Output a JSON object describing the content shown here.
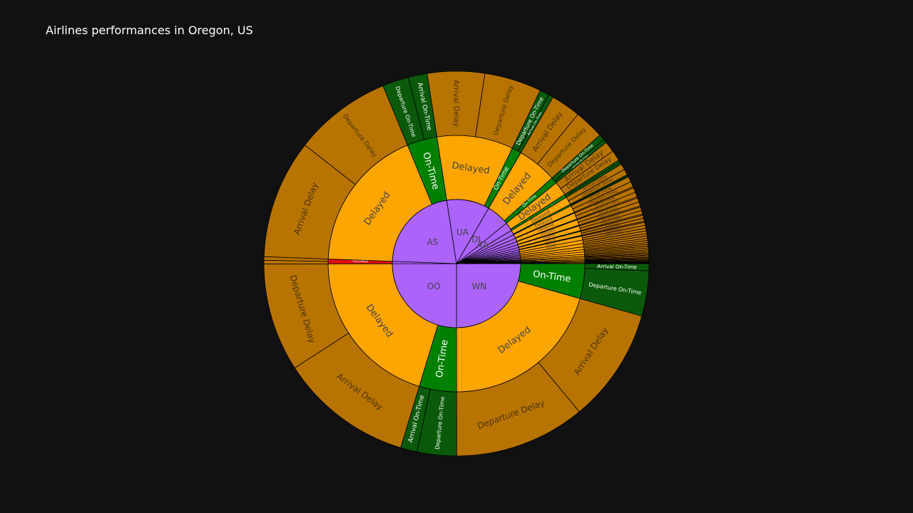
{
  "title": "Airlines performances in Oregon, US",
  "colors": {
    "background": "#111111",
    "airline": "#ab63fa",
    "delayed": "#ffa500",
    "on_time": "#008000",
    "delay_leaf": "#b87400",
    "on_time_leaf": "#0b5a0b",
    "cancelled": "#e01010",
    "border": "#000000"
  },
  "chart_data": {
    "type": "sunburst",
    "title": "Airlines performances in Oregon, US",
    "levels": [
      "airline",
      "status",
      "detail"
    ],
    "root_angle_deg": 0,
    "direction": "counterclockwise",
    "airlines": [
      {
        "name": "WN",
        "value": 25.0,
        "children": [
          {
            "name": "On-Time",
            "value": 4.4,
            "children": [
              {
                "name": "Arrival On-Time",
                "value": 0.6
              },
              {
                "name": "Departure On-Time",
                "value": 3.8
              }
            ]
          },
          {
            "name": "Delayed",
            "value": 20.6,
            "children": [
              {
                "name": "Arrival Delay",
                "value": 9.6
              },
              {
                "name": "Departure Delay",
                "value": 11.0
              }
            ]
          }
        ]
      },
      {
        "name": "OO",
        "value": 25.0,
        "children": [
          {
            "name": "On-Time",
            "value": 4.7,
            "children": [
              {
                "name": "Departure On-Time",
                "value": 3.3
              },
              {
                "name": "Arrival On-Time",
                "value": 1.4
              }
            ]
          },
          {
            "name": "Delayed",
            "value": 20.3,
            "children": [
              {
                "name": "Arrival Delay",
                "value": 11.2
              },
              {
                "name": "Departure Delay",
                "value": 9.1
              }
            ]
          }
        ]
      },
      {
        "name": "",
        "value": 0.6,
        "children": [
          {
            "name": "Cancelled",
            "value": 0.6,
            "children": [
              {
                "name": "",
                "value": 0.3
              },
              {
                "name": "",
                "value": 0.3
              }
            ]
          }
        ]
      },
      {
        "name": "AS",
        "value": 22.0,
        "children": [
          {
            "name": "Delayed",
            "value": 18.2,
            "children": [
              {
                "name": "Arrival Delay",
                "value": 10.0
              },
              {
                "name": "Departure Delay",
                "value": 8.2
              }
            ]
          },
          {
            "name": "On-Time",
            "value": 3.8,
            "children": [
              {
                "name": "Departure On-Time",
                "value": 2.2
              },
              {
                "name": "Arrival On-Time",
                "value": 1.6
              }
            ]
          }
        ]
      },
      {
        "name": "UA",
        "value": 10.8,
        "children": [
          {
            "name": "Delayed",
            "value": 9.6,
            "children": [
              {
                "name": "Arrival Delay",
                "value": 4.8
              },
              {
                "name": "Departure Delay",
                "value": 4.8
              }
            ]
          },
          {
            "name": "On-Time",
            "value": 1.2,
            "children": [
              {
                "name": "Departure On-Time",
                "value": 0.8
              },
              {
                "name": "Arrival On-Time",
                "value": 0.4
              }
            ]
          }
        ]
      },
      {
        "name": "DL",
        "value": 5.8,
        "children": [
          {
            "name": "Delayed",
            "value": 5.0,
            "children": [
              {
                "name": "Arrival Delay",
                "value": 2.5
              },
              {
                "name": "Departure Delay",
                "value": 2.5
              }
            ]
          },
          {
            "name": "On-Time",
            "value": 0.8,
            "children": [
              {
                "name": "Departure On-Time",
                "value": 0.5
              },
              {
                "name": "Arrival On-Time",
                "value": 0.3
              }
            ]
          }
        ]
      },
      {
        "name": "AA",
        "value": 2.2,
        "children": [
          {
            "name": "Delayed",
            "value": 1.8,
            "children": [
              {
                "name": "Arrival Delay",
                "value": 0.9
              },
              {
                "name": "Departure Delay",
                "value": 0.9
              }
            ]
          },
          {
            "name": "On-Time",
            "value": 0.4,
            "children": [
              {
                "name": "Departure On-Time",
                "value": 0.2
              },
              {
                "name": "Arrival On-Time",
                "value": 0.2
              }
            ]
          }
        ]
      },
      {
        "name": "",
        "value": 1.2,
        "children": [
          {
            "name": "Delayed",
            "value": 1.0,
            "children": [
              {
                "name": "Arrival Delay",
                "value": 0.5
              },
              {
                "name": "Departure Delay",
                "value": 0.5
              }
            ]
          },
          {
            "name": "On-Time",
            "value": 0.2,
            "children": [
              {
                "name": "Departure On-Time",
                "value": 0.1
              },
              {
                "name": "Arrival On-Time",
                "value": 0.1
              }
            ]
          }
        ]
      },
      {
        "name": "",
        "value": 1.0,
        "children": [
          {
            "name": "Delayed",
            "value": 0.9,
            "children": [
              {
                "name": "Arrival Delay",
                "value": 0.45
              },
              {
                "name": "Departure Delay",
                "value": 0.45
              }
            ]
          },
          {
            "name": "On-Time",
            "value": 0.1,
            "children": [
              {
                "name": "",
                "value": 0.1
              }
            ]
          }
        ]
      },
      {
        "name": "",
        "value": 0.9,
        "children": [
          {
            "name": "Delayed",
            "value": 0.8,
            "children": [
              {
                "name": "Arrival Delay",
                "value": 0.4
              },
              {
                "name": "Departure Delay",
                "value": 0.4
              }
            ]
          },
          {
            "name": "On-Time",
            "value": 0.1,
            "children": [
              {
                "name": "",
                "value": 0.1
              }
            ]
          }
        ]
      },
      {
        "name": "",
        "value": 0.8,
        "children": [
          {
            "name": "Delayed",
            "value": 0.7,
            "children": [
              {
                "name": "Arrival Delay",
                "value": 0.35
              },
              {
                "name": "Departure Delay",
                "value": 0.35
              }
            ]
          },
          {
            "name": "On-Time",
            "value": 0.1,
            "children": [
              {
                "name": "",
                "value": 0.1
              }
            ]
          }
        ]
      },
      {
        "name": "",
        "value": 0.7,
        "children": [
          {
            "name": "Delayed",
            "value": 0.6,
            "children": [
              {
                "name": "Arrival Delay",
                "value": 0.3
              },
              {
                "name": "Departure Delay",
                "value": 0.3
              }
            ]
          },
          {
            "name": "On-Time",
            "value": 0.1,
            "children": [
              {
                "name": "",
                "value": 0.1
              }
            ]
          }
        ]
      },
      {
        "name": "",
        "value": 0.6,
        "children": [
          {
            "name": "Delayed",
            "value": 0.5,
            "children": [
              {
                "name": "Arrival Delay",
                "value": 0.25
              },
              {
                "name": "Departure Delay",
                "value": 0.25
              }
            ]
          },
          {
            "name": "On-Time",
            "value": 0.1,
            "children": [
              {
                "name": "",
                "value": 0.1
              }
            ]
          }
        ]
      },
      {
        "name": "",
        "value": 0.5,
        "children": [
          {
            "name": "Delayed",
            "value": 0.5,
            "children": [
              {
                "name": "Arrival Delay",
                "value": 0.25
              },
              {
                "name": "Departure Delay",
                "value": 0.25
              }
            ]
          }
        ]
      },
      {
        "name": "",
        "value": 0.45,
        "children": [
          {
            "name": "Delayed",
            "value": 0.45,
            "children": [
              {
                "name": "",
                "value": 0.225
              },
              {
                "name": "",
                "value": 0.225
              }
            ]
          }
        ]
      },
      {
        "name": "",
        "value": 0.4,
        "children": [
          {
            "name": "Delayed",
            "value": 0.4,
            "children": [
              {
                "name": "",
                "value": 0.2
              },
              {
                "name": "",
                "value": 0.2
              }
            ]
          }
        ]
      },
      {
        "name": "",
        "value": 0.35,
        "children": [
          {
            "name": "Delayed",
            "value": 0.35,
            "children": [
              {
                "name": "",
                "value": 0.175
              },
              {
                "name": "",
                "value": 0.175
              }
            ]
          }
        ]
      },
      {
        "name": "",
        "value": 0.3,
        "children": [
          {
            "name": "Delayed",
            "value": 0.3,
            "children": [
              {
                "name": "",
                "value": 0.15
              },
              {
                "name": "",
                "value": 0.15
              }
            ]
          }
        ]
      },
      {
        "name": "",
        "value": 0.3,
        "children": [
          {
            "name": "Delayed",
            "value": 0.3,
            "children": [
              {
                "name": "",
                "value": 0.15
              },
              {
                "name": "",
                "value": 0.15
              }
            ]
          }
        ]
      },
      {
        "name": "",
        "value": 0.25,
        "children": [
          {
            "name": "Delayed",
            "value": 0.25,
            "children": [
              {
                "name": "",
                "value": 0.125
              },
              {
                "name": "",
                "value": 0.125
              }
            ]
          }
        ]
      },
      {
        "name": "",
        "value": 0.2,
        "children": [
          {
            "name": "Delayed",
            "value": 0.2,
            "children": [
              {
                "name": "",
                "value": 0.1
              },
              {
                "name": "",
                "value": 0.1
              }
            ]
          }
        ]
      },
      {
        "name": "",
        "value": 0.2,
        "children": [
          {
            "name": "Delayed",
            "value": 0.2,
            "children": [
              {
                "name": "",
                "value": 0.1
              },
              {
                "name": "",
                "value": 0.1
              }
            ]
          }
        ]
      },
      {
        "name": "",
        "value": 0.15,
        "children": [
          {
            "name": "Delayed",
            "value": 0.15,
            "children": [
              {
                "name": "",
                "value": 0.075
              },
              {
                "name": "",
                "value": 0.075
              }
            ]
          }
        ]
      },
      {
        "name": "",
        "value": 0.15,
        "children": [
          {
            "name": "Delayed",
            "value": 0.15,
            "children": [
              {
                "name": "",
                "value": 0.075
              },
              {
                "name": "",
                "value": 0.075
              }
            ]
          }
        ]
      },
      {
        "name": "",
        "value": 0.1,
        "children": [
          {
            "name": "Delayed",
            "value": 0.1,
            "children": [
              {
                "name": "",
                "value": 0.05
              },
              {
                "name": "",
                "value": 0.05
              }
            ]
          }
        ]
      },
      {
        "name": "",
        "value": 0.1,
        "children": [
          {
            "name": "Delayed",
            "value": 0.1,
            "children": [
              {
                "name": "",
                "value": 0.05
              },
              {
                "name": "",
                "value": 0.05
              }
            ]
          }
        ]
      }
    ]
  }
}
